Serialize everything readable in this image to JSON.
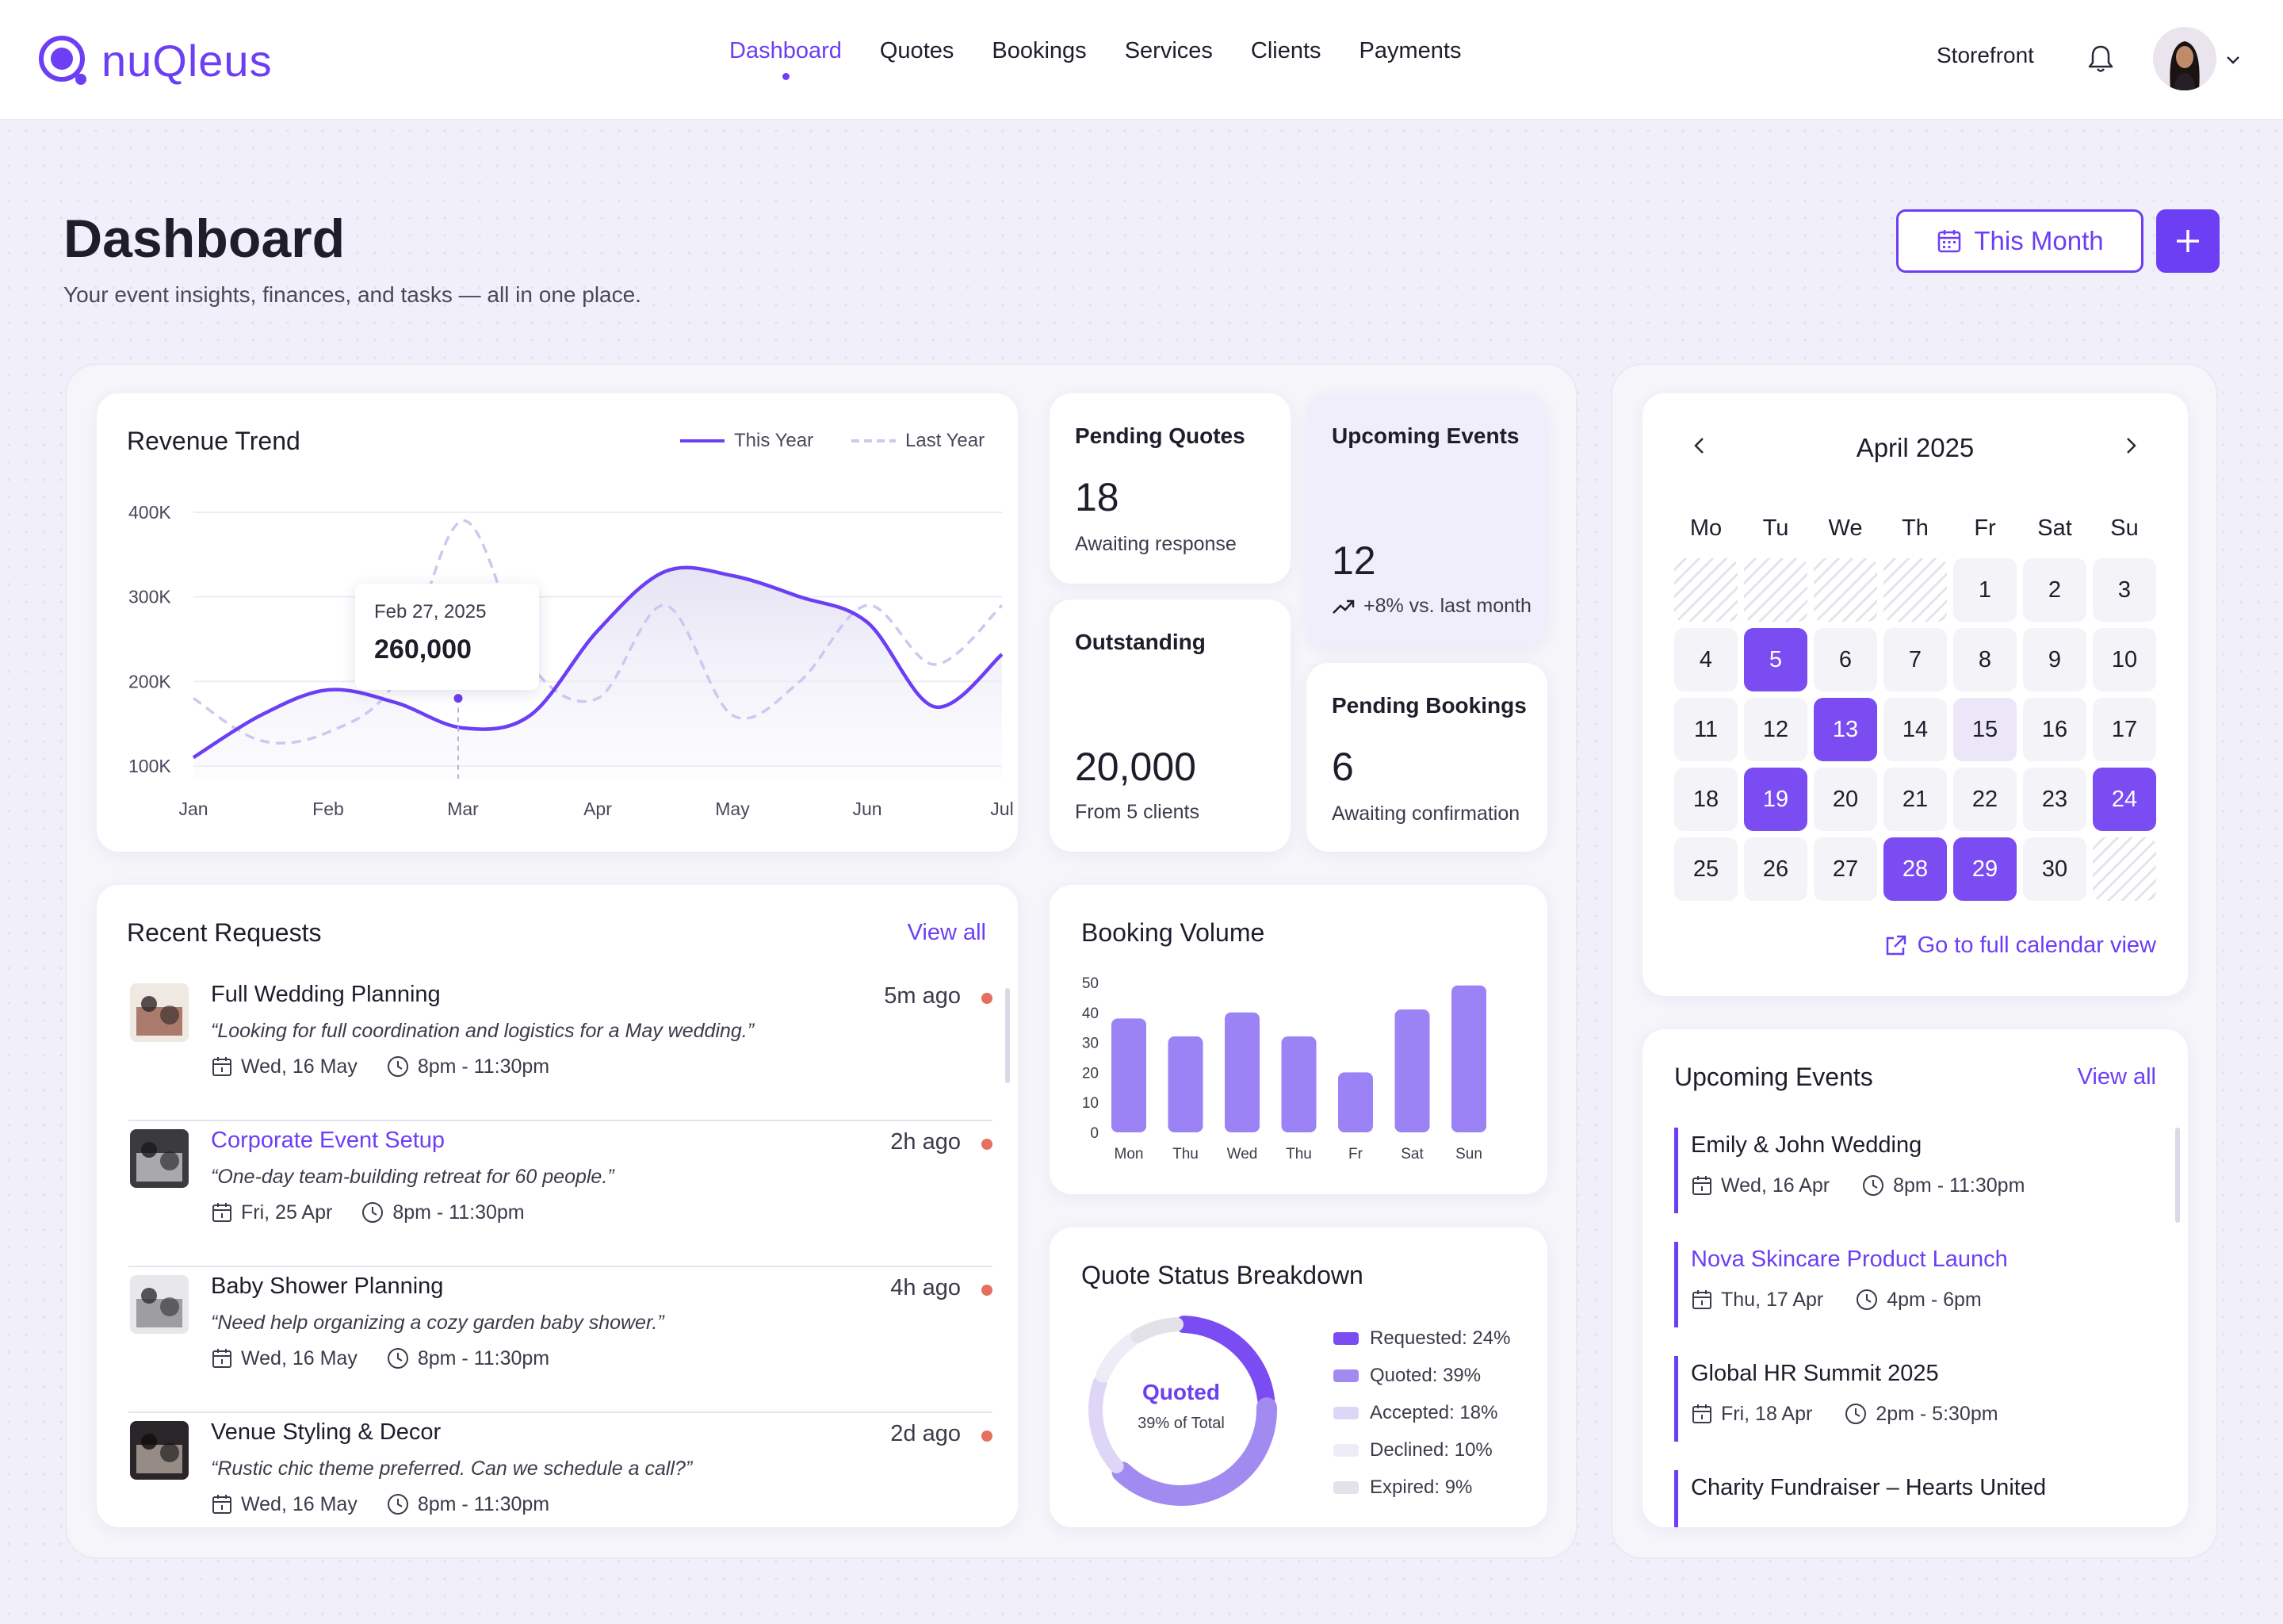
{
  "app": {
    "brand": "nuQleus",
    "nav": [
      {
        "label": "Dashboard",
        "active": true
      },
      {
        "label": "Quotes"
      },
      {
        "label": "Bookings"
      },
      {
        "label": "Services"
      },
      {
        "label": "Clients"
      },
      {
        "label": "Payments"
      }
    ],
    "storefront": "Storefront",
    "icons": {
      "bell": "bell-icon",
      "avatar": "user-avatar",
      "chevron": "chevron-down-icon"
    }
  },
  "page": {
    "title": "Dashboard",
    "subtitle": "Your event insights, finances, and tasks — all in one place.",
    "period_button": "This Month"
  },
  "revenue": {
    "title": "Revenue Trend",
    "legend_this_year": "This Year",
    "legend_last_year": "Last Year",
    "tooltip_date": "Feb 27, 2025",
    "tooltip_value": "260,000"
  },
  "chart_data": [
    {
      "type": "line",
      "title": "Revenue Trend",
      "x": [
        "Jan",
        "",
        "Feb",
        "",
        "Mar",
        "",
        "Apr",
        "",
        "May",
        "",
        "Jun",
        "",
        "Jul"
      ],
      "tick_labels": [
        "Jan",
        "Feb",
        "Mar",
        "Apr",
        "May",
        "Jun",
        "Jul"
      ],
      "y_ticks": [
        "100K",
        "200K",
        "300K",
        "400K"
      ],
      "ylim": [
        100000,
        400000
      ],
      "series": [
        {
          "name": "This Year",
          "style": "solid",
          "color": "#6c3ef4",
          "values": [
            110000,
            160000,
            190000,
            175000,
            145000,
            160000,
            260000,
            330000,
            325000,
            300000,
            270000,
            170000,
            232000
          ]
        },
        {
          "name": "Last Year",
          "style": "dashed",
          "color": "#cfc7ef",
          "values": [
            180000,
            130000,
            140000,
            200000,
            390000,
            220000,
            180000,
            290000,
            160000,
            200000,
            290000,
            220000,
            290000
          ]
        }
      ],
      "highlight": {
        "label": "Feb 27, 2025",
        "value": 260000
      }
    },
    {
      "type": "bar",
      "title": "Booking Volume",
      "categories": [
        "Mon",
        "Thu",
        "Wed",
        "Thu",
        "Fr",
        "Sat",
        "Sun"
      ],
      "values": [
        38,
        32,
        40,
        32,
        20,
        41,
        49
      ],
      "y_ticks": [
        "0",
        "10",
        "20",
        "30",
        "40",
        "50"
      ],
      "ylim": [
        0,
        50
      ]
    },
    {
      "type": "pie",
      "title": "Quote Status Breakdown",
      "center_label": "Quoted",
      "center_sub": "39% of Total",
      "slices": [
        {
          "label": "Requested",
          "value": 24,
          "color": "#7a4cf2"
        },
        {
          "label": "Quoted",
          "value": 39,
          "color": "#a18af0"
        },
        {
          "label": "Accepted",
          "value": 18,
          "color": "#ddd6f6"
        },
        {
          "label": "Declined",
          "value": 10,
          "color": "#efecf7"
        },
        {
          "label": "Expired",
          "value": 9,
          "color": "#e3e2e8"
        }
      ]
    }
  ],
  "stats": {
    "pending_quotes": {
      "title": "Pending Quotes",
      "value": "18",
      "sub": "Awaiting response"
    },
    "upcoming_events": {
      "title": "Upcoming Events",
      "value": "12",
      "sub": "+8% vs. last month"
    },
    "outstanding": {
      "title": "Outstanding",
      "value": "20,000",
      "sub": "From 5 clients"
    },
    "pending_bookings": {
      "title": "Pending Bookings",
      "value": "6",
      "sub": "Awaiting confirmation"
    }
  },
  "booking_volume": {
    "title": "Booking Volume"
  },
  "quote_status": {
    "title": "Quote Status Breakdown",
    "center_label": "Quoted",
    "center_sub": "39% of Total",
    "legend": [
      "Requested: 24%",
      "Quoted: 39%",
      "Accepted: 18%",
      "Declined: 10%",
      "Expired: 9%"
    ]
  },
  "requests": {
    "title": "Recent Requests",
    "view_all": "View all",
    "items": [
      {
        "title": "Full Wedding Planning",
        "quote": "“Looking for full coordination and logistics for a May wedding.”",
        "date": "Wed, 16 May",
        "time": "8pm - 11:30pm",
        "ago": "5m ago",
        "link": false
      },
      {
        "title": "Corporate Event Setup",
        "quote": "“One-day team-building retreat for 60 people.”",
        "date": "Fri, 25 Apr",
        "time": "8pm - 11:30pm",
        "ago": "2h ago",
        "link": true
      },
      {
        "title": "Baby Shower Planning",
        "quote": "“Need help organizing a cozy garden baby shower.”",
        "date": "Wed, 16 May",
        "time": "8pm - 11:30pm",
        "ago": "4h ago",
        "link": false
      },
      {
        "title": "Venue Styling & Decor",
        "quote": "“Rustic chic theme preferred. Can we schedule a call?”",
        "date": "Wed, 16 May",
        "time": "8pm - 11:30pm",
        "ago": "2d ago",
        "link": false
      }
    ]
  },
  "calendar": {
    "month": "April 2025",
    "weekdays": [
      "Mo",
      "Tu",
      "We",
      "Th",
      "Fr",
      "Sat",
      "Su"
    ],
    "leading_blanks": 4,
    "days_in_month": 30,
    "selected": [
      5,
      13,
      19,
      24,
      28,
      29
    ],
    "soft": [
      15
    ],
    "full_view_link": "Go to full calendar view"
  },
  "upcoming": {
    "title": "Upcoming Events",
    "view_all": "View all",
    "items": [
      {
        "title": "Emily & John Wedding",
        "date": "Wed, 16 Apr",
        "time": "8pm - 11:30pm",
        "link": false
      },
      {
        "title": "Nova Skincare Product Launch",
        "date": "Thu, 17 Apr",
        "time": "4pm - 6pm",
        "link": true
      },
      {
        "title": "Global HR Summit 2025",
        "date": "Fri, 18 Apr",
        "time": "2pm - 5:30pm",
        "link": false
      },
      {
        "title": "Charity Fundraiser – Hearts United",
        "date": "",
        "time": "",
        "link": false
      }
    ]
  }
}
